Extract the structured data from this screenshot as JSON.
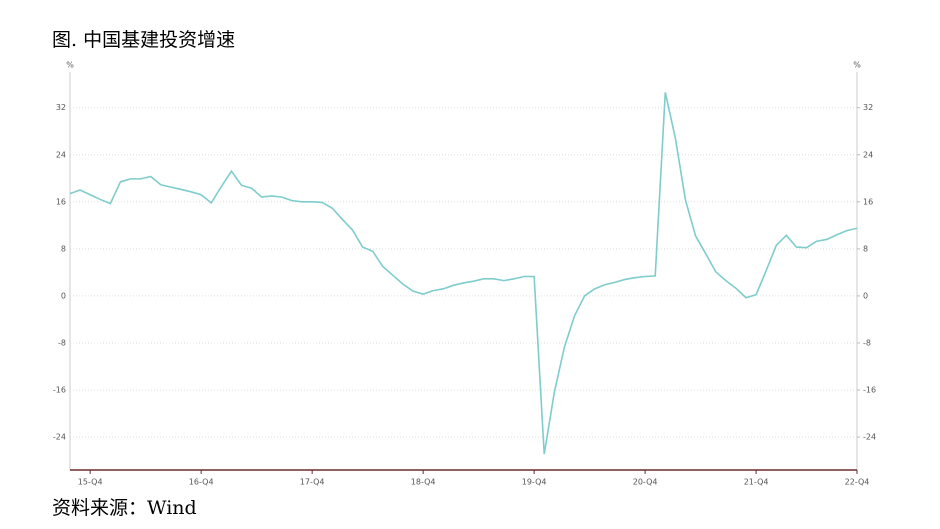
{
  "chart_data": {
    "type": "line",
    "title": "图. 中国基建投资增速",
    "source": "资料来源：Wind",
    "y_label": "%",
    "y2_label": "%",
    "categories": [
      null,
      null,
      "15-Q4",
      null,
      null,
      null,
      null,
      null,
      null,
      null,
      null,
      null,
      null,
      "16-Q4",
      null,
      null,
      null,
      null,
      null,
      null,
      null,
      null,
      null,
      null,
      "17-Q4",
      null,
      null,
      null,
      null,
      null,
      null,
      null,
      null,
      null,
      null,
      "18-Q4",
      null,
      null,
      null,
      null,
      null,
      null,
      null,
      null,
      null,
      null,
      "19-Q4",
      null,
      null,
      null,
      null,
      null,
      null,
      null,
      null,
      null,
      null,
      "20-Q4",
      null,
      null,
      null,
      null,
      null,
      null,
      null,
      null,
      null,
      null,
      "21-Q4",
      null,
      null,
      null,
      null,
      null,
      null,
      null,
      null,
      null,
      "22-Q4"
    ],
    "series": [
      {
        "color": "#7fcccc",
        "values": [
          17.4,
          18.0,
          17.2,
          16.4,
          15.7,
          19.4,
          19.9,
          19.9,
          20.3,
          18.9,
          18.5,
          18.1,
          17.7,
          17.2,
          15.8,
          18.6,
          21.2,
          18.8,
          18.3,
          16.8,
          17.0,
          16.8,
          16.2,
          16.0,
          16.0,
          15.9,
          14.9,
          13.0,
          11.2,
          8.3,
          7.6,
          5.0,
          3.5,
          2.0,
          0.8,
          0.3,
          0.9,
          1.2,
          1.8,
          2.2,
          2.5,
          2.9,
          2.9,
          2.6,
          2.9,
          3.3,
          3.3,
          -26.9,
          -16.4,
          -8.7,
          -3.4,
          0.0,
          1.2,
          1.9,
          2.3,
          2.8,
          3.1,
          3.3,
          3.4,
          34.6,
          26.8,
          16.3,
          10.2,
          7.2,
          4.1,
          2.6,
          1.3,
          -0.3,
          0.2,
          4.3,
          8.6,
          10.3,
          8.3,
          8.2,
          9.3,
          9.6,
          10.4,
          11.1,
          11.5
        ]
      }
    ],
    "ylim": [
      -29.6,
      39.6
    ],
    "yticks": [
      -24,
      -16,
      -8,
      0,
      8,
      16,
      24,
      32
    ],
    "y2lim": [
      -29.6,
      39.6
    ],
    "y2ticks": [
      -24,
      -16,
      -8,
      0,
      8,
      16,
      24,
      32
    ],
    "grid": true
  }
}
